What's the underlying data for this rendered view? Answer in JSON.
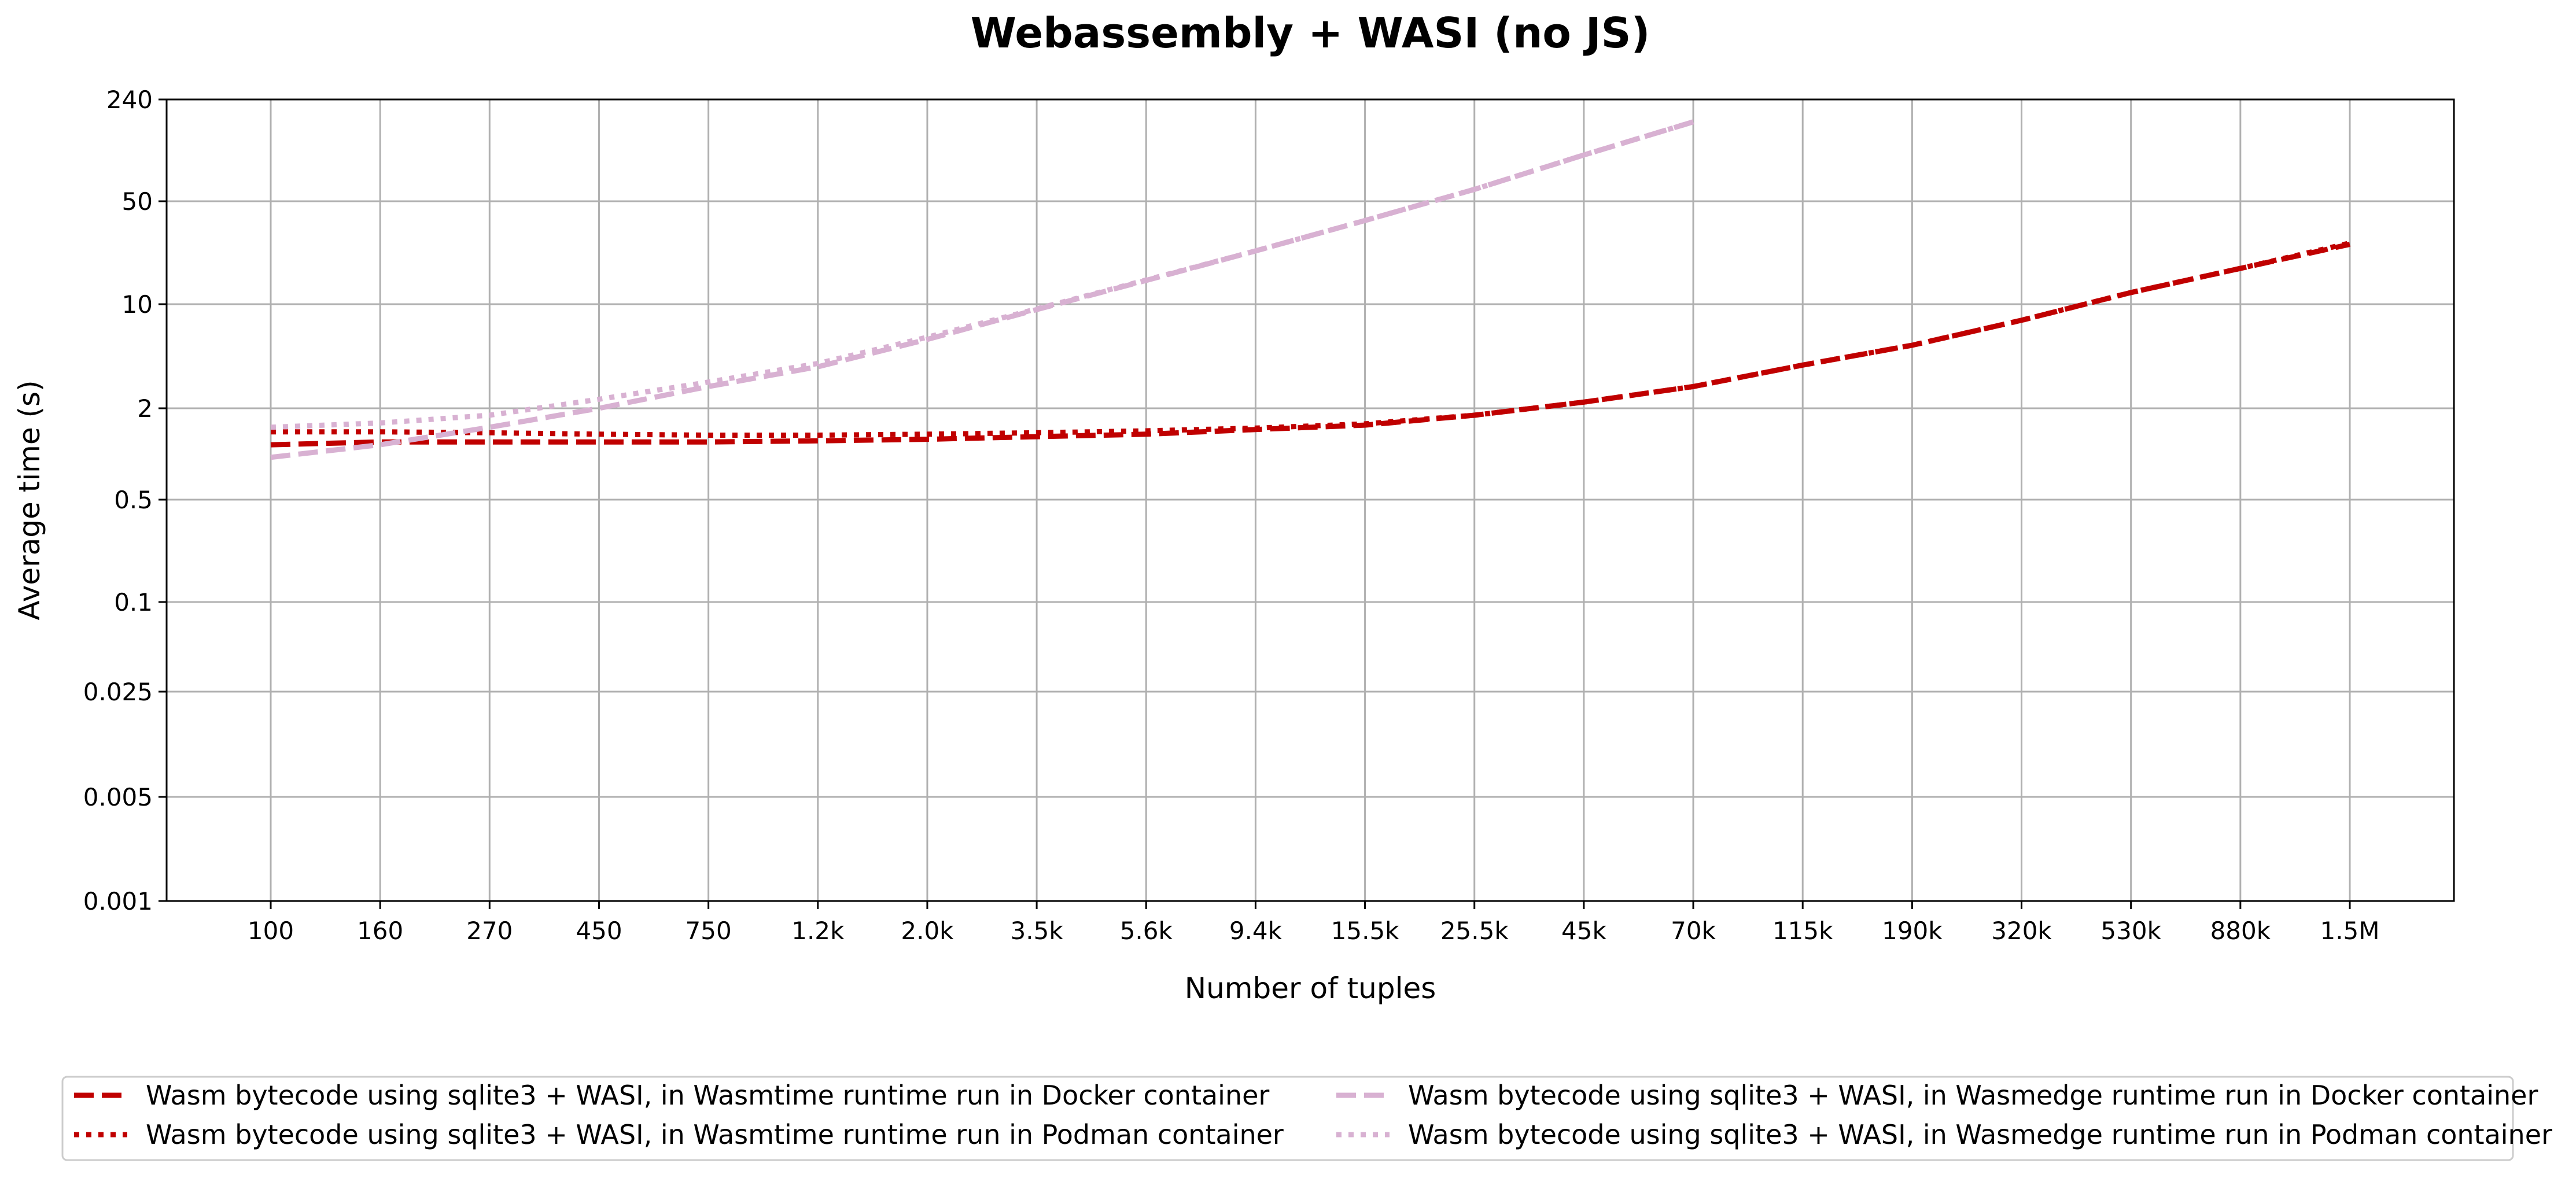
{
  "chart_data": {
    "type": "line",
    "title": "Webassembly + WASI (no JS)",
    "xlabel": "Number of tuples",
    "ylabel": "Average time (s)",
    "grid": true,
    "legend_position": "bottom",
    "x_tick_labels": [
      "100",
      "160",
      "270",
      "450",
      "750",
      "1.2k",
      "2.0k",
      "3.5k",
      "5.6k",
      "9.4k",
      "15.5k",
      "25.5k",
      "45k",
      "70k",
      "115k",
      "190k",
      "320k",
      "530k",
      "880k",
      "1.5M"
    ],
    "y_tick_labels": [
      "0.001",
      "0.005",
      "0.025",
      "0.1",
      "0.5",
      "2",
      "10",
      "50",
      "240"
    ],
    "y_scale": "log",
    "ylim": [
      0.001,
      240
    ],
    "series": [
      {
        "name": "Wasm bytecode using sqlite3 + WASI, in Wasmtime runtime run in Docker container",
        "color": "#c00000",
        "dash": "dashed",
        "values": [
          1.15,
          1.2,
          1.2,
          1.2,
          1.2,
          1.22,
          1.25,
          1.3,
          1.35,
          1.45,
          1.55,
          1.8,
          2.2,
          2.8,
          3.9,
          5.3,
          7.8,
          12.0,
          17.5,
          25.5
        ]
      },
      {
        "name": "Wasm bytecode using sqlite3 + WASI, in Wasmtime runtime run in Podman container",
        "color": "#c00000",
        "dash": "dotted",
        "values": [
          1.4,
          1.4,
          1.38,
          1.35,
          1.33,
          1.33,
          1.35,
          1.38,
          1.42,
          1.48,
          1.58,
          1.8,
          2.2,
          2.8,
          3.9,
          5.3,
          7.8,
          12.0,
          17.5,
          26.0
        ]
      },
      {
        "name": "Wasm bytecode using sqlite3 + WASI, in Wasmedge runtime run in Docker container",
        "color": "#d8b1d2",
        "dash": "dashed",
        "values": [
          0.95,
          1.15,
          1.5,
          2.0,
          2.8,
          3.8,
          5.8,
          9.2,
          14.5,
          23.0,
          37.0,
          60.0,
          102.0,
          170.0,
          null,
          null,
          null,
          null,
          null,
          null
        ]
      },
      {
        "name": "Wasm bytecode using sqlite3 + WASI, in Wasmedge runtime run in Podman container",
        "color": "#d8b1d2",
        "dash": "dotted",
        "values": [
          1.5,
          1.6,
          1.8,
          2.3,
          3.0,
          4.0,
          6.0,
          9.3,
          14.6,
          23.0,
          37.0,
          60.0,
          102.0,
          170.0,
          null,
          null,
          null,
          null,
          null,
          null
        ]
      }
    ]
  }
}
